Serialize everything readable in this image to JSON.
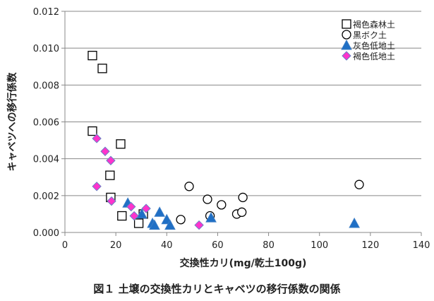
{
  "chart_data": {
    "type": "scatter",
    "title": "図１ 土壌の交換性カリとキャベツの移行係数の関係",
    "xlabel": "交換性カリ(mg/乾土100g)",
    "ylabel": "キャベツへの移行係数",
    "xlim": [
      0,
      140
    ],
    "ylim": [
      0,
      0.012
    ],
    "xticks": [
      "0",
      "20",
      "40",
      "60",
      "80",
      "100",
      "120",
      "140"
    ],
    "yticks": [
      "0.000",
      "0.002",
      "0.004",
      "0.006",
      "0.008",
      "0.010",
      "0.012"
    ],
    "grid": "horizontal",
    "legend": "top-right",
    "series": [
      {
        "name": "褐色森林土",
        "marker": "square",
        "color": "#000000",
        "points": [
          [
            10.8,
            0.0096
          ],
          [
            14.7,
            0.0089
          ],
          [
            10.8,
            0.0055
          ],
          [
            21.9,
            0.0048
          ],
          [
            17.7,
            0.0031
          ],
          [
            18,
            0.0019
          ],
          [
            22.4,
            0.0009
          ],
          [
            29,
            0.0005
          ],
          [
            30.8,
            0.001
          ]
        ]
      },
      {
        "name": "黒ボク土",
        "marker": "circle",
        "color": "#000000",
        "points": [
          [
            48.8,
            0.0025
          ],
          [
            56,
            0.0018
          ],
          [
            61.5,
            0.0015
          ],
          [
            69.9,
            0.0019
          ],
          [
            45.5,
            0.0007
          ],
          [
            57,
            0.0009
          ],
          [
            67.5,
            0.001
          ],
          [
            69.5,
            0.0011
          ],
          [
            115.6,
            0.0026
          ]
        ]
      },
      {
        "name": "灰色低地土",
        "marker": "triangle",
        "color": "#1F6FC5",
        "points": [
          [
            24.7,
            0.0016
          ],
          [
            30.2,
            0.001
          ],
          [
            34.4,
            0.0005
          ],
          [
            35.2,
            0.0004
          ],
          [
            37.2,
            0.0011
          ],
          [
            40,
            0.0007
          ],
          [
            41.3,
            0.0004
          ],
          [
            57.4,
            0.0008
          ],
          [
            113.7,
            0.0005
          ]
        ]
      },
      {
        "name": "褐色低地土",
        "marker": "diamond",
        "color": "#FF33CC",
        "points": [
          [
            12.5,
            0.0051
          ],
          [
            15.8,
            0.0044
          ],
          [
            18,
            0.0039
          ],
          [
            12.5,
            0.0025
          ],
          [
            18.3,
            0.0017
          ],
          [
            26,
            0.0014
          ],
          [
            27.2,
            0.0009
          ],
          [
            31.9,
            0.0013
          ],
          [
            52.7,
            0.0004
          ]
        ]
      }
    ]
  }
}
